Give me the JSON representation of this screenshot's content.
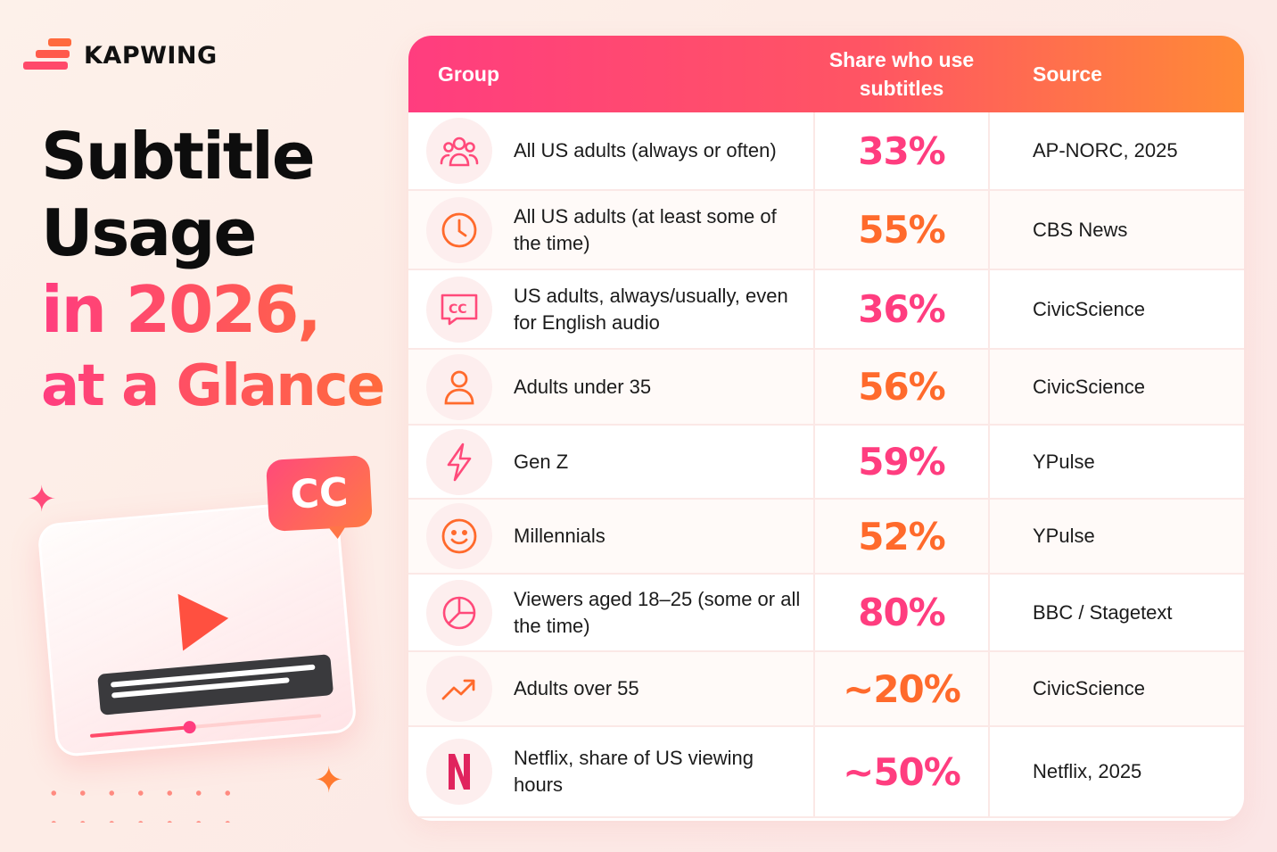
{
  "brand": {
    "name": "KAPWING"
  },
  "headline": {
    "line1": "Subtitle",
    "line2": "Usage",
    "line3": "in 2026,",
    "line4": "at a Glance"
  },
  "illustration": {
    "badge": "CC",
    "playback_progress": 0.43
  },
  "colors": {
    "pink": "#ff3d7f",
    "orange": "#ff6a2c",
    "text": "#1b1b1b"
  },
  "chart_data": {
    "type": "table",
    "columns": [
      "Group",
      "Share who use subtitles",
      "Source"
    ],
    "rows": [
      {
        "icon": "people-icon",
        "group": "All US adults (always or often)",
        "share": "33%",
        "source": "AP-NORC, 2025",
        "color": "#ff3d7f"
      },
      {
        "icon": "clock-icon",
        "group": "All US adults (at least some of the time)",
        "share": "55%",
        "source": "CBS News",
        "color": "#ff6a2c"
      },
      {
        "icon": "cc-icon",
        "group": "US adults, always/usually, even for English audio",
        "share": "36%",
        "source": "CivicScience",
        "color": "#ff3d7f"
      },
      {
        "icon": "person-icon",
        "group": "Adults under 35",
        "share": "56%",
        "source": "CivicScience",
        "color": "#ff6a2c"
      },
      {
        "icon": "lightning-icon",
        "group": "Gen Z",
        "share": "59%",
        "source": "YPulse",
        "color": "#ff3d7f"
      },
      {
        "icon": "smiley-icon",
        "group": "Millennials",
        "share": "52%",
        "source": "YPulse",
        "color": "#ff6a2c"
      },
      {
        "icon": "pie-chart-icon",
        "group": "Viewers aged 18–25 (some or all the time)",
        "share": "80%",
        "source": "BBC / Stagetext",
        "color": "#ff3d7f"
      },
      {
        "icon": "trend-up-icon",
        "group": "Adults over 55",
        "share": "~20%",
        "source": "CivicScience",
        "color": "#ff6a2c"
      },
      {
        "icon": "netflix-icon",
        "group": "Netflix, share of US viewing hours",
        "share": "~50%",
        "source": "Netflix, 2025",
        "color": "#ff3d7f"
      }
    ]
  }
}
